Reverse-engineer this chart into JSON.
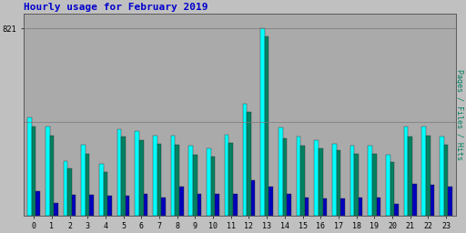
{
  "title": "Hourly usage for February 2019",
  "ylabel_right": "Pages / Files / Hits",
  "hours": [
    0,
    1,
    2,
    3,
    4,
    5,
    6,
    7,
    8,
    9,
    10,
    11,
    12,
    13,
    14,
    15,
    16,
    17,
    18,
    19,
    20,
    21,
    22,
    23
  ],
  "hits": [
    430,
    390,
    240,
    310,
    225,
    380,
    370,
    350,
    350,
    305,
    295,
    355,
    490,
    821,
    385,
    345,
    330,
    315,
    305,
    305,
    265,
    390,
    390,
    345
  ],
  "files": [
    390,
    350,
    205,
    270,
    190,
    345,
    330,
    315,
    310,
    265,
    260,
    320,
    455,
    785,
    340,
    305,
    295,
    285,
    270,
    270,
    235,
    345,
    350,
    310
  ],
  "pages": [
    105,
    55,
    90,
    90,
    85,
    85,
    95,
    80,
    125,
    95,
    95,
    95,
    155,
    125,
    95,
    80,
    75,
    75,
    80,
    80,
    50,
    140,
    135,
    125
  ],
  "ytick_label": "821",
  "ytick_value": 821,
  "background_color": "#c0c0c0",
  "plot_bg_color": "#aaaaaa",
  "title_color": "#0000cc",
  "hits_color": "#00ffff",
  "files_color": "#008060",
  "pages_color": "#0000bb",
  "ylabel_color": "#008060",
  "bar_width": 0.7,
  "figsize": [
    5.12,
    2.56
  ],
  "dpi": 100
}
